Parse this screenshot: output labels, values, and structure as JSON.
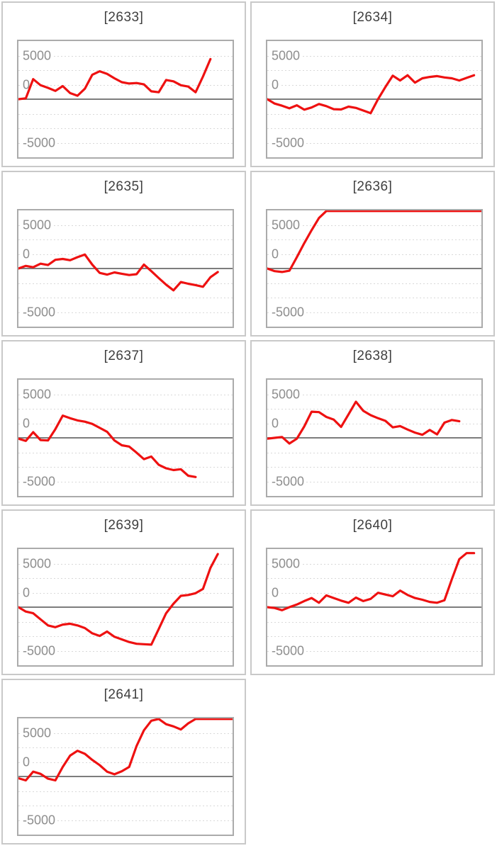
{
  "page": {
    "background": "#ffffff",
    "description_colors": {
      "line_red": "#ee1111",
      "zero_axis_gray": "#7d7d7d",
      "dotted_grid_gray": "#d9d9d9",
      "axis_label_gray": "#8e8e8e",
      "plot_border_gray": "#ababab",
      "panel_border_gray": "#c9c9c9",
      "title_text": "#3f3f3f"
    }
  },
  "layout": {
    "columns": 2,
    "rows": 5
  },
  "chart_data": {
    "type": "line",
    "grid": "horizontal-dotted",
    "legend": "none",
    "xlabel": "",
    "ylabel": "",
    "y_ticks": [
      5000,
      0,
      -5000
    ],
    "y_tick_labels": [
      "5000",
      "0",
      "-5000"
    ],
    "y_range_display": [
      -6700,
      6700
    ],
    "max_points_full_width": 30,
    "line_color": "#ee1111",
    "charts": [
      {
        "title": "[2633]",
        "machine_id": "2633",
        "values": [
          0,
          100,
          2300,
          1600,
          1300,
          950,
          1500,
          700,
          400,
          1200,
          2800,
          3200,
          2900,
          2400,
          1950,
          1800,
          1850,
          1700,
          900,
          800,
          2200,
          2050,
          1600,
          1450,
          800,
          2600,
          4600
        ]
      },
      {
        "title": "[2634]",
        "machine_id": "2634",
        "values": [
          0,
          -500,
          -750,
          -1050,
          -700,
          -1200,
          -950,
          -550,
          -800,
          -1150,
          -1180,
          -850,
          -1000,
          -1300,
          -1600,
          0,
          1400,
          2700,
          2150,
          2750,
          1900,
          2400,
          2550,
          2650,
          2500,
          2400,
          2150,
          2450,
          2750
        ]
      },
      {
        "title": "[2635]",
        "machine_id": "2635",
        "values": [
          0,
          300,
          150,
          550,
          400,
          1000,
          1100,
          950,
          1300,
          1600,
          450,
          -500,
          -700,
          -450,
          -600,
          -750,
          -650,
          450,
          -300,
          -1100,
          -1850,
          -2500,
          -1550,
          -1750,
          -1900,
          -2100,
          -1000,
          -400
        ]
      },
      {
        "title": "[2636]",
        "machine_id": "2636",
        "values": [
          0,
          -300,
          -400,
          -250,
          1300,
          2900,
          4400,
          5800,
          6600,
          6600,
          6600,
          6600,
          6600,
          6600,
          6600,
          6600,
          6600,
          6600,
          6600,
          6600,
          6600,
          6600,
          6600,
          6600,
          6600,
          6600,
          6600,
          6600,
          6600,
          6600
        ]
      },
      {
        "title": "[2637]",
        "machine_id": "2637",
        "values": [
          -100,
          -350,
          650,
          -250,
          -300,
          1000,
          2550,
          2250,
          2000,
          1850,
          1600,
          1150,
          700,
          -300,
          -850,
          -1000,
          -1700,
          -2450,
          -2150,
          -3100,
          -3500,
          -3700,
          -3600,
          -4350,
          -4500
        ]
      },
      {
        "title": "[2638]",
        "machine_id": "2638",
        "values": [
          -100,
          0,
          100,
          -650,
          -100,
          1300,
          3000,
          2950,
          2400,
          2100,
          1250,
          2700,
          4150,
          3100,
          2600,
          2250,
          1950,
          1200,
          1350,
          950,
          600,
          350,
          900,
          400,
          1750,
          2050,
          1900
        ]
      },
      {
        "title": "[2639]",
        "machine_id": "2639",
        "values": [
          0,
          -500,
          -700,
          -1400,
          -2100,
          -2300,
          -2000,
          -1900,
          -2100,
          -2400,
          -3000,
          -3300,
          -2800,
          -3400,
          -3700,
          -4000,
          -4200,
          -4250,
          -4300,
          -2500,
          -700,
          400,
          1300,
          1400,
          1600,
          2100,
          4500,
          6100
        ]
      },
      {
        "title": "[2640]",
        "machine_id": "2640",
        "values": [
          0,
          -100,
          -350,
          0,
          300,
          700,
          1050,
          500,
          1350,
          1050,
          750,
          500,
          1100,
          700,
          950,
          1650,
          1450,
          1250,
          1900,
          1400,
          1050,
          850,
          600,
          500,
          800,
          3200,
          5500,
          6200,
          6200
        ]
      },
      {
        "title": "[2641]",
        "machine_id": "2641",
        "values": [
          -200,
          -450,
          550,
          300,
          -250,
          -450,
          1100,
          2400,
          2950,
          2600,
          1900,
          1300,
          550,
          250,
          600,
          1100,
          3500,
          5300,
          6400,
          6600,
          6000,
          5750,
          5400,
          6100,
          6600,
          6600,
          6600,
          6600,
          6600,
          6600
        ]
      }
    ]
  }
}
